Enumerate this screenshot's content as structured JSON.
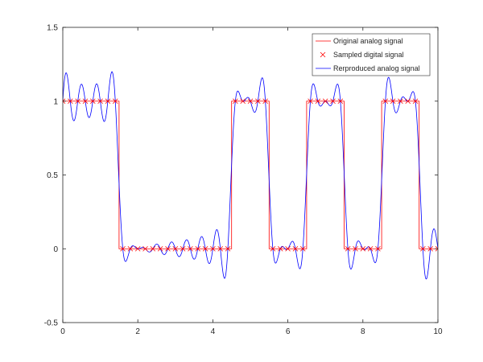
{
  "chart_data": {
    "type": "line",
    "title": "",
    "xlabel": "",
    "ylabel": "",
    "xlim": [
      0,
      10
    ],
    "ylim": [
      -0.5,
      1.5
    ],
    "x_ticks": [
      0,
      2,
      4,
      6,
      8,
      10
    ],
    "y_ticks": [
      -0.5,
      0,
      0.5,
      1,
      1.5
    ],
    "x_tick_labels": [
      "0",
      "2",
      "4",
      "6",
      "8",
      "10"
    ],
    "y_tick_labels": [
      "-0.5",
      "0",
      "0.5",
      "1",
      "1.5"
    ],
    "grid": false,
    "legend_position": "top-right",
    "legend_entries": [
      {
        "label": "Original analog signal",
        "color": "#ff0000",
        "style": "line"
      },
      {
        "label": "Sampled digital signal",
        "color": "#ff0000",
        "style": "x-marker"
      },
      {
        "label": "Rerproduced analog signal",
        "color": "#0000ff",
        "style": "line"
      }
    ],
    "series": [
      {
        "name": "Original analog signal",
        "color": "#ff0000",
        "kind": "step",
        "x": [
          0,
          1.5,
          1.5,
          4.5,
          4.5,
          5.5,
          5.5,
          6.5,
          6.5,
          7.5,
          7.5,
          8.5,
          8.5,
          9.5,
          9.5,
          10
        ],
        "y": [
          1,
          1,
          0,
          0,
          1,
          1,
          0,
          0,
          1,
          1,
          0,
          0,
          1,
          1,
          0,
          0
        ]
      },
      {
        "name": "Sampled digital signal",
        "color": "#ff0000",
        "kind": "markers",
        "x": [
          0,
          0.2,
          0.4,
          0.6,
          0.8,
          1.0,
          1.2,
          1.4,
          1.6,
          1.8,
          2.0,
          2.2,
          2.4,
          2.6,
          2.8,
          3.0,
          3.2,
          3.4,
          3.6,
          3.8,
          4.0,
          4.2,
          4.4,
          4.6,
          4.8,
          5.0,
          5.2,
          5.4,
          5.6,
          5.8,
          6.0,
          6.2,
          6.4,
          6.6,
          6.8,
          7.0,
          7.2,
          7.4,
          7.6,
          7.8,
          8.0,
          8.2,
          8.4,
          8.6,
          8.8,
          9.0,
          9.2,
          9.4,
          9.6,
          9.8,
          10.0
        ],
        "y": [
          1,
          1,
          1,
          1,
          1,
          1,
          1,
          1,
          0,
          0,
          0,
          0,
          0,
          0,
          0,
          0,
          0,
          0,
          0,
          0,
          0,
          0,
          0,
          1,
          1,
          1,
          1,
          1,
          0,
          0,
          0,
          0,
          0,
          1,
          1,
          1,
          1,
          1,
          0,
          0,
          0,
          0,
          0,
          1,
          1,
          1,
          1,
          1,
          0,
          0,
          0
        ]
      },
      {
        "name": "Rerproduced analog signal",
        "color": "#0000ff",
        "kind": "sinc-reconstruction",
        "sample_period": 0.2
      }
    ]
  }
}
